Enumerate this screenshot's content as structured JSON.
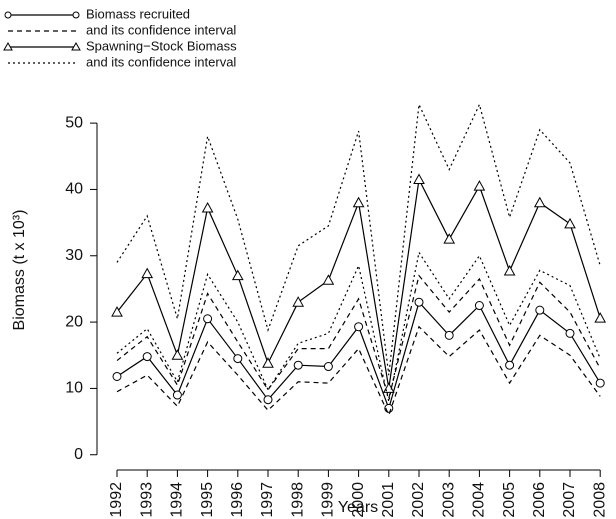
{
  "chart_data": {
    "type": "line",
    "x_label": "Years",
    "y_label": "Biomass (t x 10³)",
    "categories": [
      "1992",
      "1993",
      "1994",
      "1995",
      "1996",
      "1997",
      "1998",
      "1999",
      "2000",
      "2001",
      "2002",
      "2003",
      "2004",
      "2005",
      "2006",
      "2007",
      "2008"
    ],
    "ylim": [
      -2.3,
      56.5
    ],
    "yticks": [
      0,
      10,
      20,
      30,
      40,
      50
    ],
    "series": [
      {
        "name": "Biomass recruited",
        "color": "#000000",
        "dash": "solid",
        "marker": "circle",
        "values": [
          11.8,
          14.8,
          9,
          20.5,
          14.5,
          8.3,
          13.5,
          13.3,
          19.3,
          7,
          23,
          18,
          22.5,
          13.5,
          21.8,
          18.3,
          10.8
        ]
      },
      {
        "name": "and its confidence interval",
        "color": "#000000",
        "dash": "dashed",
        "lower": [
          9.5,
          12,
          7.3,
          17,
          12,
          6.7,
          11,
          10.8,
          16,
          6,
          19.3,
          14.8,
          18.8,
          10.8,
          18,
          15,
          8.8
        ],
        "upper": [
          14.2,
          17.8,
          10.5,
          24.3,
          17,
          9.8,
          16,
          16,
          23.5,
          8.5,
          27,
          21.5,
          26.5,
          16.5,
          26,
          21.5,
          13
        ]
      },
      {
        "name": "Spawning−Stock Biomass",
        "color": "#000000",
        "dash": "solid",
        "marker": "triangle",
        "values": [
          21.5,
          27.3,
          15,
          37.2,
          27,
          13.8,
          23,
          26.3,
          38,
          10,
          41.5,
          32.5,
          40.5,
          27.7,
          38,
          34.8,
          20.6
        ]
      },
      {
        "name": "and its confidence interval",
        "color": "#000000",
        "dash": "dotted",
        "lower": [
          15.3,
          19,
          11,
          27.2,
          20,
          9.8,
          16.8,
          18.3,
          28.5,
          8,
          30.5,
          23.5,
          30,
          19.5,
          27.8,
          25.5,
          14.5
        ],
        "upper": [
          29,
          36,
          20.5,
          48,
          35.5,
          18.8,
          31.5,
          34.5,
          48.8,
          12,
          52.8,
          43,
          52.8,
          35.8,
          49,
          44,
          28.5
        ]
      }
    ]
  }
}
